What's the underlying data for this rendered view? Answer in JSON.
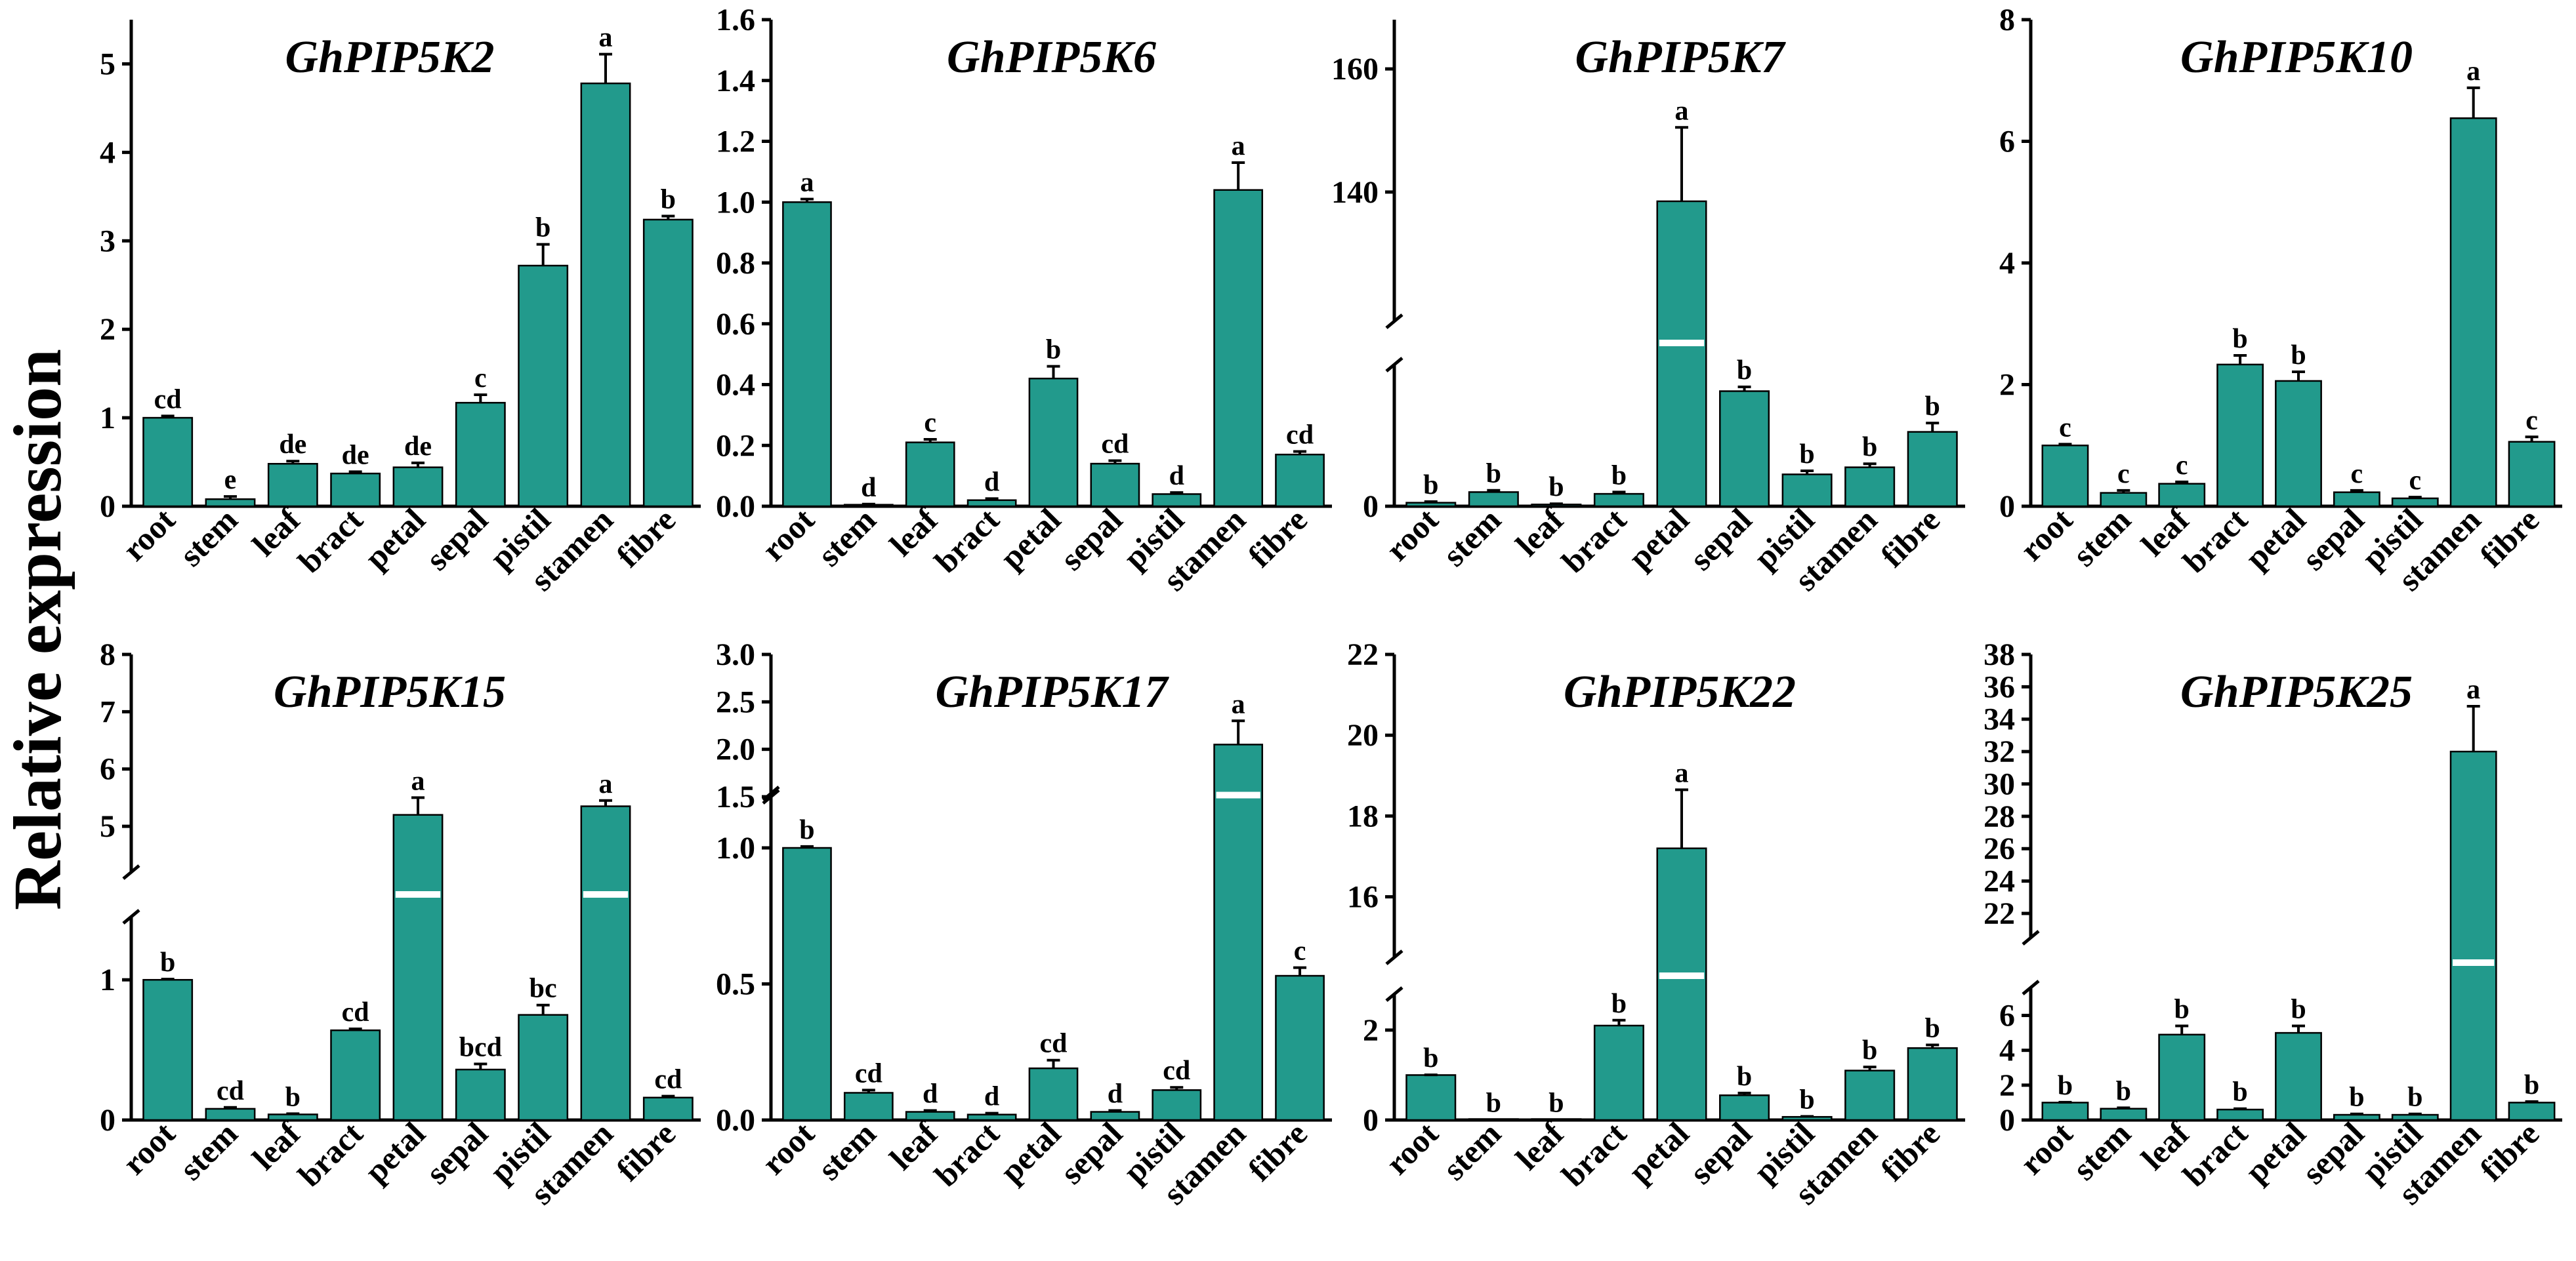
{
  "figure": {
    "ylabel": "Relative expression",
    "bar_color": "#229A8C",
    "categories": [
      "root",
      "stem",
      "leaf",
      "bract",
      "petal",
      "sepal",
      "pistil",
      "stamen",
      "fibre"
    ]
  },
  "chart_data": [
    {
      "type": "bar",
      "title": "GhPIP5K2",
      "categories": [
        "root",
        "stem",
        "leaf",
        "bract",
        "petal",
        "sepal",
        "pistil",
        "stamen",
        "fibre"
      ],
      "values": [
        1.0,
        0.08,
        0.48,
        0.37,
        0.44,
        1.17,
        2.72,
        4.78,
        3.24
      ],
      "errors": [
        0.02,
        0.03,
        0.03,
        0.02,
        0.05,
        0.09,
        0.24,
        0.33,
        0.04
      ],
      "letters": [
        "cd",
        "e",
        "de",
        "de",
        "de",
        "c",
        "b",
        "a",
        "b"
      ],
      "ylim": [
        0,
        5.5
      ],
      "yticks": [
        0,
        1,
        2,
        3,
        4,
        5
      ],
      "tick_labels": [
        "0",
        "1",
        "2",
        "3",
        "4",
        "5"
      ]
    },
    {
      "type": "bar",
      "title": "GhPIP5K6",
      "categories": [
        "root",
        "stem",
        "leaf",
        "bract",
        "petal",
        "sepal",
        "pistil",
        "stamen",
        "fibre"
      ],
      "values": [
        1.0,
        0.005,
        0.21,
        0.02,
        0.42,
        0.14,
        0.04,
        1.04,
        0.17
      ],
      "errors": [
        0.01,
        0.002,
        0.01,
        0.005,
        0.04,
        0.01,
        0.005,
        0.09,
        0.01
      ],
      "letters": [
        "a",
        "d",
        "c",
        "d",
        "b",
        "cd",
        "d",
        "a",
        "cd"
      ],
      "ylim": [
        0,
        1.6
      ],
      "yticks": [
        0,
        0.2,
        0.4,
        0.6,
        0.8,
        1.0,
        1.2,
        1.4,
        1.6
      ],
      "tick_labels": [
        "0.0",
        "0.2",
        "0.4",
        "0.6",
        "0.8",
        "1.0",
        "1.2",
        "1.4",
        "1.6"
      ]
    },
    {
      "type": "bar",
      "title": "GhPIP5K7",
      "broken_axis": true,
      "categories": [
        "root",
        "stem",
        "leaf",
        "bract",
        "petal",
        "sepal",
        "pistil",
        "stamen",
        "fibre"
      ],
      "values": [
        1,
        4,
        0.5,
        3.5,
        138.5,
        32.5,
        9,
        11,
        21
      ],
      "errors": [
        0.3,
        0.5,
        0.2,
        0.5,
        12,
        1.2,
        1,
        1,
        2.5
      ],
      "letters": [
        "b",
        "b",
        "b",
        "b",
        "a",
        "b",
        "b",
        "b",
        "b"
      ],
      "lower_range": [
        0,
        40
      ],
      "upper_range": [
        119,
        168
      ],
      "yticks": [
        0,
        140,
        160
      ],
      "tick_labels": [
        "0",
        "140",
        "160"
      ]
    },
    {
      "type": "bar",
      "title": "GhPIP5K10",
      "categories": [
        "root",
        "stem",
        "leaf",
        "bract",
        "petal",
        "sepal",
        "pistil",
        "stamen",
        "fibre"
      ],
      "values": [
        1.0,
        0.22,
        0.37,
        2.33,
        2.06,
        0.23,
        0.13,
        6.38,
        1.06
      ],
      "errors": [
        0.02,
        0.04,
        0.03,
        0.15,
        0.15,
        0.03,
        0.02,
        0.5,
        0.08
      ],
      "letters": [
        "c",
        "c",
        "c",
        "b",
        "b",
        "c",
        "c",
        "a",
        "c"
      ],
      "ylim": [
        0,
        8
      ],
      "yticks": [
        0,
        2,
        4,
        6,
        8
      ],
      "tick_labels": [
        "0",
        "2",
        "4",
        "6",
        "8"
      ]
    },
    {
      "type": "bar",
      "title": "GhPIP5K15",
      "broken_axis": true,
      "categories": [
        "root",
        "stem",
        "leaf",
        "bract",
        "petal",
        "sepal",
        "pistil",
        "stamen",
        "fibre"
      ],
      "values": [
        1.0,
        0.08,
        0.04,
        0.64,
        5.2,
        0.36,
        0.75,
        5.35,
        0.16
      ],
      "errors": [
        0.005,
        0.01,
        0.005,
        0.01,
        0.3,
        0.04,
        0.07,
        0.1,
        0.01
      ],
      "letters": [
        "b",
        "cd",
        "b",
        "cd",
        "a",
        "bcd",
        "bc",
        "a",
        "cd"
      ],
      "lower_range": [
        0,
        1.45
      ],
      "upper_range": [
        4.2,
        8.0
      ],
      "yticks": [
        0,
        1,
        5,
        6,
        7,
        8
      ],
      "tick_labels": [
        "0",
        "1",
        "5",
        "6",
        "7",
        "8"
      ]
    },
    {
      "type": "bar",
      "title": "GhPIP5K17",
      "broken_axis": true,
      "categories": [
        "root",
        "stem",
        "leaf",
        "bract",
        "petal",
        "sepal",
        "pistil",
        "stamen",
        "fibre"
      ],
      "values": [
        1.0,
        0.1,
        0.03,
        0.02,
        0.19,
        0.03,
        0.11,
        2.05,
        0.53
      ],
      "errors": [
        0.005,
        0.01,
        0.005,
        0.005,
        0.03,
        0.005,
        0.01,
        0.25,
        0.03
      ],
      "letters": [
        "b",
        "cd",
        "d",
        "d",
        "cd",
        "d",
        "cd",
        "a",
        "c"
      ],
      "lower_range": [
        0,
        1.2
      ],
      "upper_range": [
        1.5,
        3.0
      ],
      "yticks": [
        0,
        0.5,
        1.0,
        1.5,
        2.0,
        2.5,
        3.0
      ],
      "tick_labels": [
        "0.0",
        "0.5",
        "1.0",
        "1.5",
        "2.0",
        "2.5",
        "3.0"
      ]
    },
    {
      "type": "bar",
      "title": "GhPIP5K22",
      "broken_axis": true,
      "categories": [
        "root",
        "stem",
        "leaf",
        "bract",
        "petal",
        "sepal",
        "pistil",
        "stamen",
        "fibre"
      ],
      "values": [
        1.0,
        0.005,
        0.005,
        2.1,
        17.2,
        0.55,
        0.07,
        1.1,
        1.6
      ],
      "errors": [
        0.005,
        0.002,
        0.002,
        0.12,
        1.45,
        0.05,
        0.01,
        0.08,
        0.07
      ],
      "letters": [
        "b",
        "b",
        "b",
        "b",
        "a",
        "b",
        "b",
        "b",
        "b"
      ],
      "lower_range": [
        0,
        2.8
      ],
      "upper_range": [
        14.5,
        22
      ],
      "yticks": [
        0,
        2,
        16,
        18,
        20,
        22
      ],
      "tick_labels": [
        "0",
        "2",
        "16",
        "18",
        "20",
        "22"
      ]
    },
    {
      "type": "bar",
      "title": "GhPIP5K25",
      "broken_axis": true,
      "categories": [
        "root",
        "stem",
        "leaf",
        "bract",
        "petal",
        "sepal",
        "pistil",
        "stamen",
        "fibre"
      ],
      "values": [
        1.0,
        0.65,
        4.9,
        0.6,
        5.0,
        0.3,
        0.3,
        32.0,
        1.0
      ],
      "errors": [
        0.02,
        0.05,
        0.5,
        0.05,
        0.4,
        0.05,
        0.05,
        2.8,
        0.06
      ],
      "letters": [
        "b",
        "b",
        "b",
        "b",
        "b",
        "b",
        "b",
        "a",
        "b"
      ],
      "lower_range": [
        0,
        7.6
      ],
      "upper_range": [
        20.5,
        38
      ],
      "yticks": [
        0,
        2,
        4,
        6,
        22,
        24,
        26,
        28,
        30,
        32,
        34,
        36,
        38
      ],
      "tick_labels": [
        "0",
        "2",
        "4",
        "6",
        "22",
        "24",
        "26",
        "28",
        "30",
        "32",
        "34",
        "36",
        "38"
      ]
    }
  ]
}
